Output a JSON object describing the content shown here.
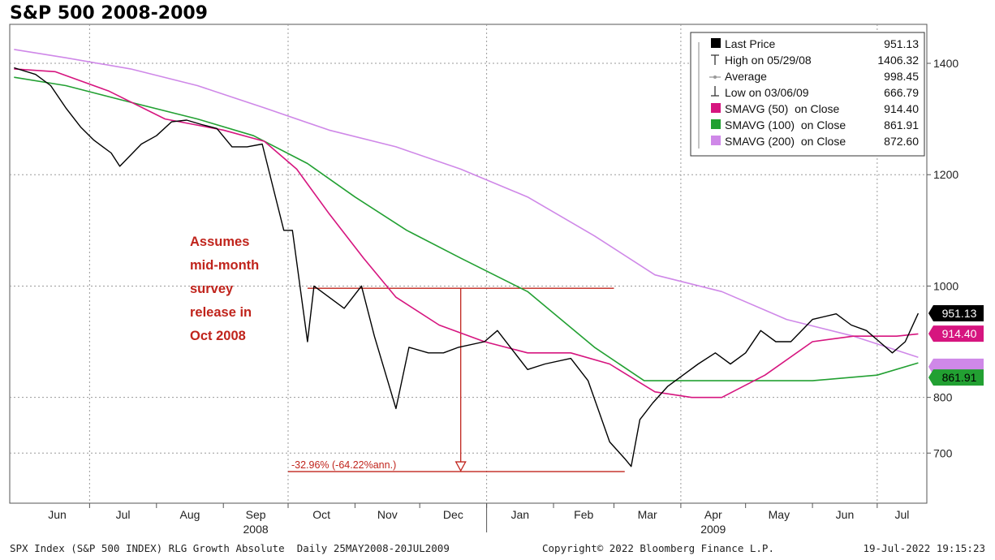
{
  "chart_data": {
    "type": "line",
    "title": "S&P 500 2008-2009",
    "ylim": [
      610,
      1470
    ],
    "y_ticks": [
      700,
      800,
      1000,
      1200,
      1400
    ],
    "month_labels": [
      "Jun",
      "Jul",
      "Aug",
      "Sep",
      "Oct",
      "Nov",
      "Dec",
      "Jan",
      "Feb",
      "Mar",
      "Apr",
      "May",
      "Jun",
      "Jul"
    ],
    "year_labels": [
      "2008",
      "2009"
    ],
    "grid": true,
    "legend_position": "top-right",
    "legend": [
      {
        "label": "Last Price",
        "value": "951.13",
        "icon": "black-square"
      },
      {
        "label": "High on 05/29/08",
        "value": "1406.32",
        "icon": "high-marker"
      },
      {
        "label": "Average",
        "value": "998.45",
        "icon": "average-marker"
      },
      {
        "label": "Low on 03/06/09",
        "value": "666.79",
        "icon": "low-marker"
      },
      {
        "label": "SMAVG (50)  on Close",
        "value": "914.40",
        "icon": "magenta-square"
      },
      {
        "label": "SMAVG (100)  on Close",
        "value": "861.91",
        "icon": "green-square"
      },
      {
        "label": "SMAVG (200)  on Close",
        "value": "872.60",
        "icon": "violet-square"
      }
    ],
    "colors": {
      "price": "#000000",
      "sma50": "#d6157f",
      "sma100": "#22a032",
      "sma200": "#cf88e8",
      "annotation": "#c0241c",
      "tag_last": "#000000",
      "tag_sma50": "#d6157f",
      "tag_sma100": "#22a032",
      "tag_sma200": "#cf88e8"
    },
    "value_tags": [
      {
        "name": "last-price-tag",
        "value": 951.13,
        "label": "951.13",
        "color": "#000000",
        "text_color": "#ffffff"
      },
      {
        "name": "sma50-tag",
        "value": 914.4,
        "label": "914.40",
        "color": "#d6157f",
        "text_color": "#ffffff"
      },
      {
        "name": "sma200-tag",
        "value": 872.6,
        "label": "",
        "color": "#cf88e8",
        "text_color": "#ffffff"
      },
      {
        "name": "sma100-tag",
        "value": 861.91,
        "label": "861.91",
        "color": "#22a032",
        "text_color": "#000000"
      }
    ],
    "series": [
      {
        "name": "Last Price",
        "x": [
          "2008-05-27",
          "2008-06-06",
          "2008-06-13",
          "2008-06-20",
          "2008-06-27",
          "2008-07-03",
          "2008-07-11",
          "2008-07-15",
          "2008-07-25",
          "2008-08-01",
          "2008-08-08",
          "2008-08-15",
          "2008-08-22",
          "2008-08-29",
          "2008-09-05",
          "2008-09-12",
          "2008-09-19",
          "2008-09-29",
          "2008-10-03",
          "2008-10-10",
          "2008-10-13",
          "2008-10-20",
          "2008-10-27",
          "2008-11-04",
          "2008-11-10",
          "2008-11-20",
          "2008-11-26",
          "2008-12-05",
          "2008-12-12",
          "2008-12-19",
          "2008-12-31",
          "2009-01-06",
          "2009-01-20",
          "2009-01-28",
          "2009-02-09",
          "2009-02-17",
          "2009-02-27",
          "2009-03-06",
          "2009-03-09",
          "2009-03-13",
          "2009-03-19",
          "2009-03-26",
          "2009-04-02",
          "2009-04-09",
          "2009-04-17",
          "2009-04-24",
          "2009-05-01",
          "2009-05-08",
          "2009-05-15",
          "2009-05-22",
          "2009-06-01",
          "2009-06-12",
          "2009-06-19",
          "2009-06-26",
          "2009-07-02",
          "2009-07-08",
          "2009-07-14",
          "2009-07-20"
        ],
        "y": [
          1392,
          1380,
          1360,
          1320,
          1285,
          1262,
          1239,
          1215,
          1255,
          1270,
          1295,
          1298,
          1290,
          1283,
          1250,
          1250,
          1255,
          1100,
          1100,
          900,
          1000,
          980,
          960,
          1000,
          910,
          780,
          890,
          880,
          880,
          890,
          900,
          920,
          850,
          860,
          870,
          830,
          720,
          690,
          676,
          760,
          790,
          820,
          840,
          860,
          880,
          860,
          880,
          920,
          900,
          900,
          940,
          950,
          930,
          920,
          900,
          880,
          900,
          951
        ]
      },
      {
        "name": "SMAVG (50)  on Close",
        "x": [
          "2008-05-27",
          "2008-06-15",
          "2008-07-10",
          "2008-08-05",
          "2008-09-01",
          "2008-09-20",
          "2008-10-05",
          "2008-10-20",
          "2008-11-05",
          "2008-11-20",
          "2008-12-10",
          "2008-12-31",
          "2009-01-20",
          "2009-02-09",
          "2009-02-27",
          "2009-03-20",
          "2009-04-06",
          "2009-04-20",
          "2009-05-10",
          "2009-06-01",
          "2009-06-20",
          "2009-07-10",
          "2009-07-20"
        ],
        "y": [
          1390,
          1385,
          1350,
          1300,
          1280,
          1260,
          1210,
          1130,
          1050,
          980,
          930,
          900,
          880,
          880,
          860,
          810,
          800,
          800,
          840,
          900,
          910,
          910,
          914
        ]
      },
      {
        "name": "SMAVG (100)  on Close",
        "x": [
          "2008-05-27",
          "2008-06-20",
          "2008-07-20",
          "2008-08-20",
          "2008-09-15",
          "2008-10-10",
          "2008-11-01",
          "2008-11-25",
          "2008-12-20",
          "2009-01-20",
          "2009-02-20",
          "2009-03-15",
          "2009-04-01",
          "2009-05-01",
          "2009-06-01",
          "2009-07-01",
          "2009-07-20"
        ],
        "y": [
          1375,
          1360,
          1330,
          1300,
          1270,
          1220,
          1160,
          1100,
          1050,
          990,
          890,
          830,
          830,
          830,
          830,
          840,
          862
        ]
      },
      {
        "name": "SMAVG (200)  on Close",
        "x": [
          "2008-05-27",
          "2008-06-20",
          "2008-07-20",
          "2008-08-20",
          "2008-09-20",
          "2008-10-20",
          "2008-11-20",
          "2008-12-20",
          "2009-01-20",
          "2009-02-20",
          "2009-03-20",
          "2009-04-20",
          "2009-05-20",
          "2009-06-20",
          "2009-07-20"
        ],
        "y": [
          1425,
          1410,
          1390,
          1360,
          1320,
          1280,
          1250,
          1210,
          1160,
          1090,
          1020,
          990,
          940,
          910,
          872
        ]
      }
    ],
    "annotations": {
      "note_lines": [
        "Assumes",
        "mid-month",
        "survey",
        "release in",
        "Oct 2008"
      ],
      "drop_label": "-32.96% (-64.22%ann.)",
      "reference_level": 996,
      "reference_start": "2008-10-10",
      "reference_end": "2009-03-01",
      "arrow_date": "2008-12-20",
      "low_level": 666.79,
      "low_start": "2008-10-01",
      "low_end": "2009-03-06"
    }
  },
  "footer": {
    "left": "SPX Index (S&P 500 INDEX) RLG Growth Absolute  Daily 25MAY2008-20JUL2009",
    "center": "Copyright© 2022 Bloomberg Finance L.P.",
    "right": "19-Jul-2022 19:15:23"
  }
}
